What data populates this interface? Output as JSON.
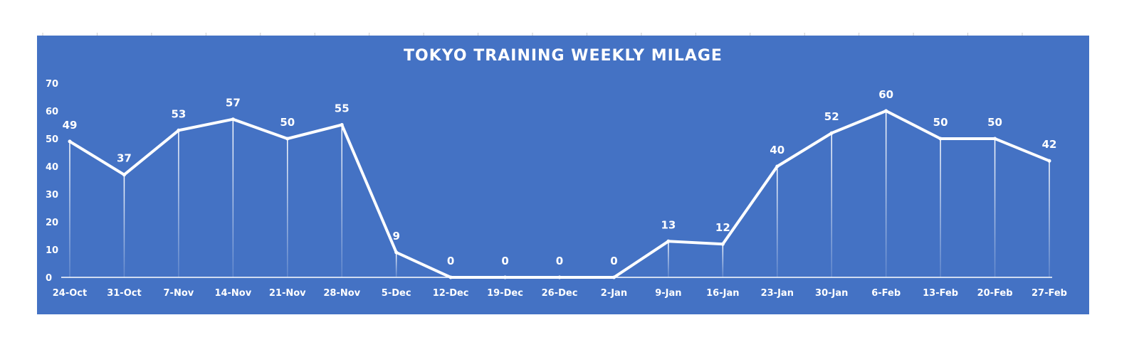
{
  "chart_data": {
    "type": "line",
    "title": "TOKYO TRAINING WEEKLY MILAGE",
    "xlabel": "",
    "ylabel": "",
    "categories": [
      "24-Oct",
      "31-Oct",
      "7-Nov",
      "14-Nov",
      "21-Nov",
      "28-Nov",
      "5-Dec",
      "12-Dec",
      "19-Dec",
      "26-Dec",
      "2-Jan",
      "9-Jan",
      "16-Jan",
      "23-Jan",
      "30-Jan",
      "6-Feb",
      "13-Feb",
      "20-Feb",
      "27-Feb"
    ],
    "series": [
      {
        "values": [
          49,
          37,
          53,
          57,
          50,
          55,
          9,
          0,
          0,
          0,
          0,
          13,
          12,
          40,
          52,
          60,
          50,
          50,
          42
        ]
      }
    ],
    "ylim": [
      0,
      70
    ],
    "yticks": [
      0,
      10,
      20,
      30,
      40,
      50,
      60,
      70
    ],
    "grid": false,
    "data_labels": true,
    "drop_lines": true
  },
  "colors": {
    "panel": "#4472C4",
    "line": "#ffffff",
    "text": "#ffffff"
  }
}
